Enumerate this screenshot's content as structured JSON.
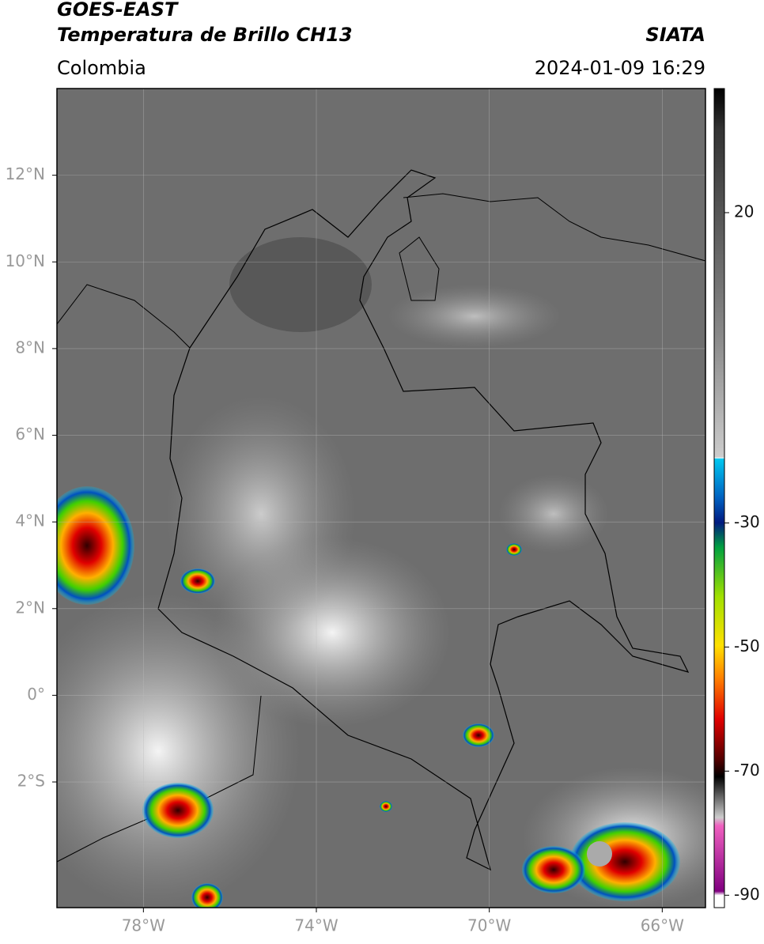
{
  "header": {
    "title": "GOES-EAST",
    "subtitle": "Temperatura de Brillo CH13",
    "source": "SIATA",
    "region": "Colombia",
    "datetime": "2024-01-09 16:29"
  },
  "map": {
    "xlim": [
      -80,
      -65
    ],
    "ylim": [
      -4.9,
      14
    ],
    "xticks": [
      {
        "value": -78,
        "label": "78°W"
      },
      {
        "value": -74,
        "label": "74°W"
      },
      {
        "value": -70,
        "label": "70°W"
      },
      {
        "value": -66,
        "label": "66°W"
      }
    ],
    "yticks": [
      {
        "value": 12,
        "label": "12°N"
      },
      {
        "value": 10,
        "label": "10°N"
      },
      {
        "value": 8,
        "label": "8°N"
      },
      {
        "value": 6,
        "label": "6°N"
      },
      {
        "value": 4,
        "label": "4°N"
      },
      {
        "value": 2,
        "label": "2°N"
      },
      {
        "value": 0,
        "label": "0°"
      },
      {
        "value": -2,
        "label": "2°S"
      }
    ],
    "grid": true
  },
  "colorbar": {
    "lim": [
      -92,
      40
    ],
    "ticks": [
      20,
      -30,
      -50,
      -70,
      -90
    ]
  }
}
